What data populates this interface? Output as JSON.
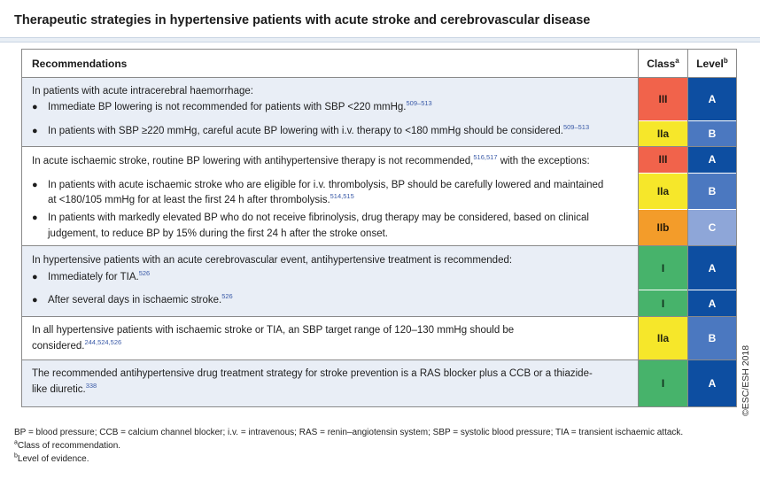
{
  "title": "Therapeutic strategies in hypertensive patients with acute stroke and cerebrovascular disease",
  "header": {
    "recommendations": "Recommendations",
    "class": "Class",
    "class_sup": "a",
    "level": "Level",
    "level_sup": "b"
  },
  "groups": [
    {
      "lines": [
        {
          "text": "In patients with acute intracerebral haemorrhage:",
          "ref": ""
        },
        {
          "text": "Immediate BP lowering is not recommended for patients with SBP <220 mmHg.",
          "ref": "509–513"
        },
        {
          "text": "In patients with SBP ≥220 mmHg, careful acute BP lowering with i.v. therapy to <180 mmHg should be considered.",
          "ref": "509–513"
        }
      ],
      "cells": [
        {
          "class": "III",
          "level": "A"
        },
        {
          "class": "IIa",
          "level": "B"
        }
      ]
    },
    {
      "lines": [
        {
          "text": "In acute ischaemic stroke, routine BP lowering with antihypertensive therapy is not recommended,",
          "ref": "516,517",
          "after": " with the exceptions:"
        },
        {
          "text": "In patients with acute ischaemic stroke who are eligible for i.v. thrombolysis, BP should be carefully lowered and maintained",
          "ref": ""
        },
        {
          "text": "at <180/105 mmHg for at least the first 24 h after thrombolysis.",
          "ref": "514,515"
        },
        {
          "text": "In patients with markedly elevated BP who do not receive fibrinolysis, drug therapy may be considered, based on clinical",
          "ref": ""
        },
        {
          "text": "judgement, to reduce BP by 15% during the first 24 h after the stroke onset.",
          "ref": ""
        }
      ],
      "cells": [
        {
          "class": "III",
          "level": "A"
        },
        {
          "class": "IIa",
          "level": "B"
        },
        {
          "class": "IIb",
          "level": "C"
        }
      ]
    },
    {
      "lines": [
        {
          "text": "In hypertensive patients with an acute cerebrovascular event, antihypertensive treatment is recommended:",
          "ref": ""
        },
        {
          "text": "Immediately for TIA.",
          "ref": "526"
        },
        {
          "text": "After several days in ischaemic stroke.",
          "ref": "526"
        }
      ],
      "cells": [
        {
          "class": "I",
          "level": "A"
        },
        {
          "class": "I",
          "level": "A"
        }
      ]
    },
    {
      "lines": [
        {
          "text": "In all hypertensive patients with ischaemic stroke or TIA, an SBP target range of 120–130 mmHg should be",
          "ref": ""
        },
        {
          "text": "considered.",
          "ref": "244,524,526"
        }
      ],
      "cells": [
        {
          "class": "IIa",
          "level": "B"
        }
      ]
    },
    {
      "lines": [
        {
          "text": "The recommended antihypertensive drug treatment strategy for stroke prevention is a RAS blocker plus a CCB or a thiazide-",
          "ref": ""
        },
        {
          "text": "like diuretic.",
          "ref": "338"
        }
      ],
      "cells": [
        {
          "class": "I",
          "level": "A"
        }
      ]
    }
  ],
  "footnotes": {
    "abbreviations": "BP = blood pressure; CCB = calcium channel blocker; i.v. = intravenous; RAS = renin–angiotensin system; SBP = systolic blood pressure; TIA = transient ischaemic attack.",
    "a_sup": "a",
    "a_text": "Class of recommendation.",
    "b_sup": "b",
    "b_text": "Level of evidence."
  },
  "copyright": "©ESC/ESH 2018",
  "colors": {
    "class_III": "#f1634b",
    "class_IIa": "#f6e72a",
    "class_IIb": "#f39c2a",
    "class_I": "#47b36b",
    "level_A": "#0d4ea1",
    "level_B": "#4b78c0",
    "level_C": "#8ea6d8"
  }
}
